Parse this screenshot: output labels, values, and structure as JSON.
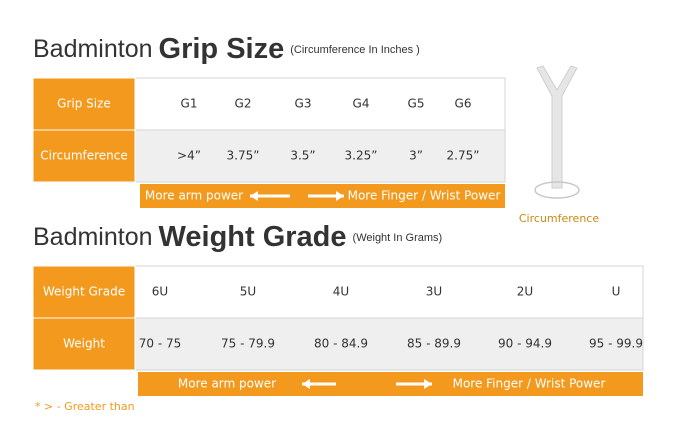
{
  "grip_size": {
    "title_light": "Badminton",
    "title_bold": "Grip Size",
    "subtitle": "(Circumference In Inches )",
    "rows": [
      {
        "label": "Grip Size",
        "cells": [
          "G1",
          "G2",
          "G3",
          "G4",
          "G5",
          "G6"
        ]
      },
      {
        "label": "Circumference",
        "cells": [
          ">4”",
          "3.75”",
          "3.5”",
          "3.25”",
          "3”",
          "2.75”"
        ]
      }
    ],
    "footer": {
      "left": "More arm power",
      "right": "More Finger / Wrist Power"
    }
  },
  "diagram_label": "Circumference",
  "weight_grade": {
    "title_light": "Badminton",
    "title_bold": "Weight Grade",
    "subtitle": "(Weight In Grams)",
    "rows": [
      {
        "label": "Weight Grade",
        "cells": [
          "6U",
          "5U",
          "4U",
          "3U",
          "2U",
          "U"
        ]
      },
      {
        "label": "Weight",
        "cells": [
          "70 - 75",
          "75 - 79.9",
          "80 - 84.9",
          "85 - 89.9",
          "90 - 94.9",
          "95 - 99.9"
        ]
      }
    ],
    "footer": {
      "left": "More arm power",
      "right": "More Finger / Wrist Power"
    }
  },
  "footnote": "* > - Greater than"
}
